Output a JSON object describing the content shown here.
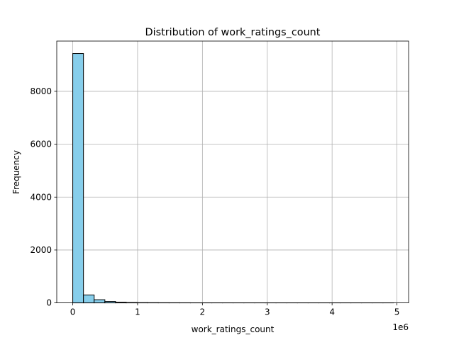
{
  "chart_data": {
    "type": "bar",
    "title": "Distribution of work_ratings_count",
    "xlabel": "work_ratings_count",
    "ylabel": "Frequency",
    "x_offset_label": "1e6",
    "xlim": [
      -0.247,
      5.18
    ],
    "ylim": [
      0,
      9900
    ],
    "x_ticks": [
      0,
      1,
      2,
      3,
      4,
      5
    ],
    "x_tick_labels": [
      "0",
      "1",
      "2",
      "3",
      "4",
      "5"
    ],
    "y_ticks": [
      0,
      2000,
      4000,
      6000,
      8000
    ],
    "y_tick_labels": [
      "0",
      "2000",
      "4000",
      "6000",
      "8000"
    ],
    "grid": true,
    "bar_color": "#87ceeb",
    "edge_color": "#000000",
    "bin_edges": [
      0,
      0.165,
      0.33,
      0.495,
      0.66,
      0.825,
      0.99,
      1.155,
      1.32,
      1.485,
      1.65,
      1.815,
      1.98,
      2.145,
      2.31,
      2.475,
      2.64,
      2.805,
      2.97,
      3.135,
      3.3,
      3.465,
      3.63,
      3.795,
      3.96,
      4.125,
      4.29,
      4.455,
      4.62,
      4.785,
      4.95
    ],
    "values": [
      9430,
      300,
      120,
      55,
      25,
      15,
      10,
      8,
      6,
      5,
      4,
      3,
      2,
      2,
      2,
      1,
      1,
      1,
      1,
      1,
      1,
      1,
      1,
      1,
      1,
      1,
      1,
      1,
      1,
      1
    ]
  }
}
